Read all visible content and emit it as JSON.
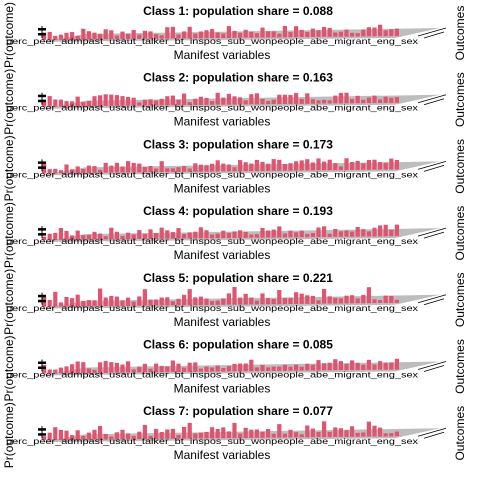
{
  "figure": {
    "y_axis_label": "Pr(outcome)",
    "z_axis_label": "Outcomes",
    "x_axis_label": "Manifest variables",
    "x_tick_text": "perc_peer_admpast_usaut_talker_bt_inspos_sub_wonpeople_abe_migrant_eng_sex",
    "bar_color": "#e0546f",
    "floor_color": "#bdbdbd"
  },
  "chart_data": [
    {
      "type": "bar",
      "title": "Class 1: population share = 0.088",
      "population_share": 0.088,
      "ylabel": "Pr(outcome)",
      "xlabel": "Manifest variables",
      "zlabel": "Outcomes"
    },
    {
      "type": "bar",
      "title": "Class 2: population share = 0.163",
      "population_share": 0.163,
      "ylabel": "Pr(outcome)",
      "xlabel": "Manifest variables",
      "zlabel": "Outcomes"
    },
    {
      "type": "bar",
      "title": "Class 3: population share = 0.173",
      "population_share": 0.173,
      "ylabel": "Pr(outcome)",
      "xlabel": "Manifest variables",
      "zlabel": "Outcomes"
    },
    {
      "type": "bar",
      "title": "Class 4: population share = 0.193",
      "population_share": 0.193,
      "ylabel": "Pr(outcome)",
      "xlabel": "Manifest variables",
      "zlabel": "Outcomes"
    },
    {
      "type": "bar",
      "title": "Class 5: population share = 0.221",
      "population_share": 0.221,
      "ylabel": "Pr(outcome)",
      "xlabel": "Manifest variables",
      "zlabel": "Outcomes"
    },
    {
      "type": "bar",
      "title": "Class 6: population share = 0.085",
      "population_share": 0.085,
      "ylabel": "Pr(outcome)",
      "xlabel": "Manifest variables",
      "zlabel": "Outcomes"
    },
    {
      "type": "bar",
      "title": "Class 7: population share = 0.077",
      "population_share": 0.077,
      "ylabel": "Pr(outcome)",
      "xlabel": "Manifest variables",
      "zlabel": "Outcomes"
    }
  ]
}
